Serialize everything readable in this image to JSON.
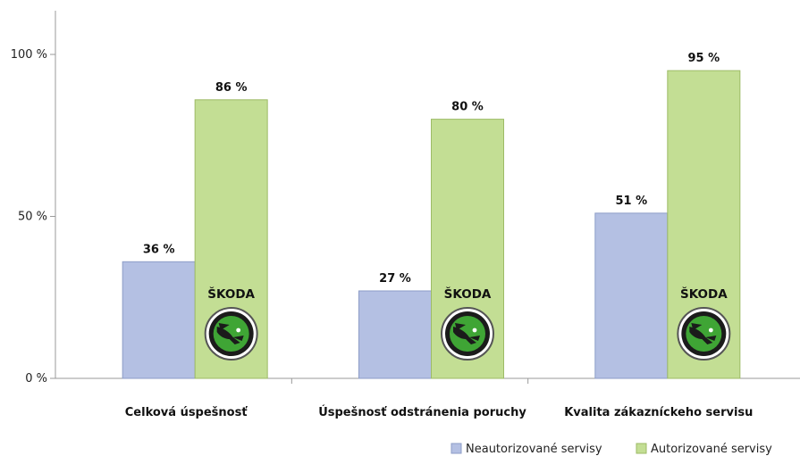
{
  "chart_data": {
    "type": "bar",
    "categories": [
      "Celková úspešnosť",
      "Úspešnosť odstránenia poruchy",
      "Kvalita zákazníckeho servisu"
    ],
    "series": [
      {
        "name": "Neautorizované servisy",
        "values": [
          36,
          27,
          51
        ],
        "labels": [
          "36 %",
          "27 %",
          "51 %"
        ],
        "color": "#b4c0e3"
      },
      {
        "name": "Autorizované servisy",
        "values": [
          86,
          80,
          95
        ],
        "labels": [
          "86 %",
          "80 %",
          "95 %"
        ],
        "color": "#c3de94"
      }
    ],
    "yticks": [
      {
        "value": 0,
        "label": "0 %"
      },
      {
        "value": 50,
        "label": "50 %"
      },
      {
        "value": 100,
        "label": "100 %"
      }
    ],
    "ylim": [
      0,
      100
    ],
    "grid": false,
    "legend_position": "bottom-right",
    "brand_text": "ŠKODA",
    "brand_icon": "skoda-logo-icon",
    "colors": {
      "neutral_bar": "#b4c0e3",
      "neutral_border": "#8d9dc7",
      "green_bar": "#c3de94",
      "green_border": "#9dbb66",
      "logo_green": "#3fa535"
    }
  }
}
